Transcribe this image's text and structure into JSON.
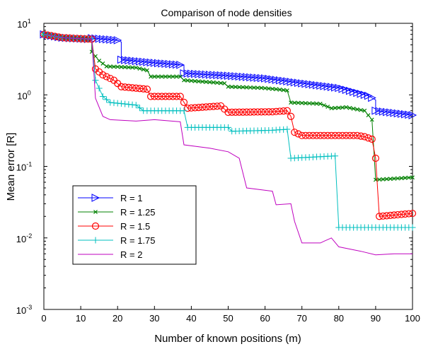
{
  "chart_data": {
    "type": "line",
    "title": "Comparison of node densities",
    "xlabel": "Number of known positions (m)",
    "ylabel": "Mean error [R]",
    "xlim": [
      0,
      100
    ],
    "ylim": [
      0.001,
      10
    ],
    "yscale": "log",
    "xticks": [
      "0",
      "10",
      "20",
      "30",
      "40",
      "50",
      "60",
      "70",
      "80",
      "90",
      "100"
    ],
    "yticks": [
      {
        "base": "10",
        "exp": "-3"
      },
      {
        "base": "10",
        "exp": "-2"
      },
      {
        "base": "10",
        "exp": "-1"
      },
      {
        "base": "10",
        "exp": "0"
      },
      {
        "base": "10",
        "exp": "1"
      }
    ],
    "legend_position": "lower-left",
    "series": [
      {
        "name": "R = 1",
        "color": "#0000ff",
        "marker": "triangle-right",
        "points": [
          [
            0,
            7
          ],
          [
            5,
            6.3
          ],
          [
            10,
            6.1
          ],
          [
            13,
            6
          ],
          [
            13,
            6.2
          ],
          [
            20,
            5.8
          ],
          [
            21,
            5.5
          ],
          [
            21,
            3.1
          ],
          [
            30,
            2.8
          ],
          [
            38,
            2.6
          ],
          [
            38,
            2
          ],
          [
            50,
            1.85
          ],
          [
            60,
            1.7
          ],
          [
            70,
            1.45
          ],
          [
            80,
            1.25
          ],
          [
            88,
            0.97
          ],
          [
            90,
            0.85
          ],
          [
            90,
            0.6
          ],
          [
            100,
            0.52
          ]
        ]
      },
      {
        "name": "R = 1.25",
        "color": "#008000",
        "marker": "x",
        "points": [
          [
            0,
            7
          ],
          [
            5,
            6.3
          ],
          [
            10,
            6.1
          ],
          [
            13,
            6
          ],
          [
            13,
            4
          ],
          [
            15,
            3
          ],
          [
            17,
            2.5
          ],
          [
            25,
            2.4
          ],
          [
            28,
            2.2
          ],
          [
            29,
            1.8
          ],
          [
            37,
            1.8
          ],
          [
            38,
            1.6
          ],
          [
            49,
            1.45
          ],
          [
            50,
            1.3
          ],
          [
            59,
            1.25
          ],
          [
            63,
            1.2
          ],
          [
            66,
            1.15
          ],
          [
            67,
            0.78
          ],
          [
            75,
            0.75
          ],
          [
            78,
            0.65
          ],
          [
            82,
            0.67
          ],
          [
            87,
            0.6
          ],
          [
            89,
            0.45
          ],
          [
            90,
            0.065
          ],
          [
            100,
            0.07
          ]
        ]
      },
      {
        "name": "R = 1.5",
        "color": "#ff0000",
        "marker": "circle",
        "points": [
          [
            0,
            7
          ],
          [
            5,
            6.3
          ],
          [
            10,
            6.1
          ],
          [
            13,
            6
          ],
          [
            14,
            2.3
          ],
          [
            16,
            1.9
          ],
          [
            19,
            1.6
          ],
          [
            21,
            1.3
          ],
          [
            28,
            1.2
          ],
          [
            29,
            0.95
          ],
          [
            37,
            0.95
          ],
          [
            39,
            0.65
          ],
          [
            48,
            0.7
          ],
          [
            50,
            0.57
          ],
          [
            62,
            0.58
          ],
          [
            66,
            0.6
          ],
          [
            67,
            0.5
          ],
          [
            68,
            0.3
          ],
          [
            70,
            0.27
          ],
          [
            85,
            0.27
          ],
          [
            87,
            0.26
          ],
          [
            89,
            0.24
          ],
          [
            90,
            0.13
          ],
          [
            91,
            0.02
          ],
          [
            100,
            0.022
          ]
        ]
      },
      {
        "name": "R = 1.75",
        "color": "#00bfbf",
        "marker": "plus",
        "points": [
          [
            0,
            7
          ],
          [
            5,
            6.3
          ],
          [
            10,
            6.1
          ],
          [
            13,
            6
          ],
          [
            14,
            1.6
          ],
          [
            16,
            0.95
          ],
          [
            18,
            0.78
          ],
          [
            25,
            0.72
          ],
          [
            27,
            0.6
          ],
          [
            38,
            0.6
          ],
          [
            39,
            0.35
          ],
          [
            50,
            0.35
          ],
          [
            51,
            0.31
          ],
          [
            62,
            0.32
          ],
          [
            66,
            0.33
          ],
          [
            67,
            0.13
          ],
          [
            79,
            0.14
          ],
          [
            80,
            0.014
          ],
          [
            100,
            0.014
          ]
        ]
      },
      {
        "name": "R = 2",
        "color": "#bf00bf",
        "marker": "none",
        "points": [
          [
            0,
            7
          ],
          [
            5,
            6.3
          ],
          [
            10,
            6.1
          ],
          [
            13,
            6
          ],
          [
            14,
            0.9
          ],
          [
            16,
            0.5
          ],
          [
            18,
            0.45
          ],
          [
            25,
            0.43
          ],
          [
            30,
            0.45
          ],
          [
            37,
            0.42
          ],
          [
            38,
            0.2
          ],
          [
            45,
            0.18
          ],
          [
            50,
            0.16
          ],
          [
            53,
            0.13
          ],
          [
            55,
            0.05
          ],
          [
            62,
            0.045
          ],
          [
            63,
            0.029
          ],
          [
            67,
            0.03
          ],
          [
            68,
            0.017
          ],
          [
            70,
            0.0085
          ],
          [
            75,
            0.0085
          ],
          [
            76,
            0.009
          ],
          [
            78,
            0.01
          ],
          [
            80,
            0.0075
          ],
          [
            86,
            0.0065
          ],
          [
            90,
            0.0058
          ],
          [
            95,
            0.006
          ],
          [
            100,
            0.006
          ]
        ]
      }
    ]
  }
}
